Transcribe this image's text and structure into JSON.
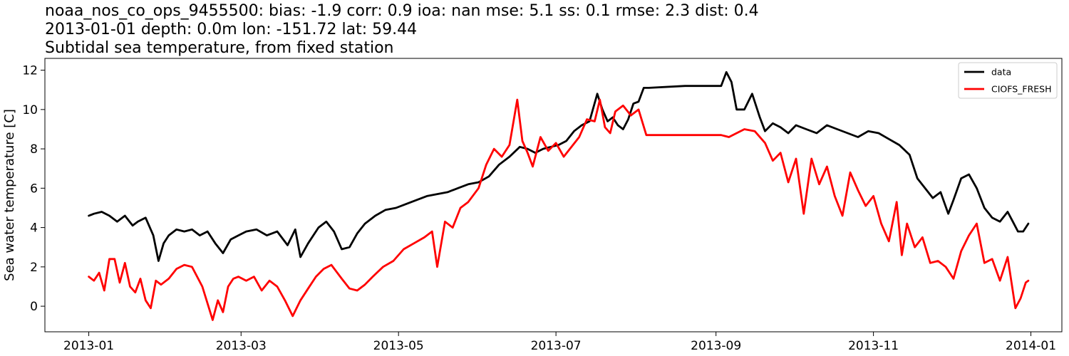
{
  "chart_data": {
    "type": "line",
    "title_lines": [
      "noaa_nos_co_ops_9455500: bias: -1.9  corr: 0.9  ioa: nan  mse: 5.1  ss: 0.1  rmse: 2.3  dist: 0.4",
      "2013-01-01 depth: 0.0m lon: -151.72 lat: 59.44",
      "Subtidal sea temperature, from fixed station"
    ],
    "xlabel": "",
    "ylabel": "Sea water temperature [C]",
    "xlim": [
      "2012-12-15",
      "2014-01-13"
    ],
    "ylim": [
      -1.3,
      12.6
    ],
    "x_ticks": [
      "2013-01",
      "2013-03",
      "2013-05",
      "2013-07",
      "2013-09",
      "2013-11",
      "2014-01"
    ],
    "y_ticks": [
      0,
      2,
      4,
      6,
      8,
      10,
      12
    ],
    "grid": false,
    "legend_position": "top-right",
    "colors": {
      "data": "#000000",
      "CIOFS_FRESH": "#ff0000"
    },
    "series": [
      {
        "name": "data",
        "x": [
          "2013-01-01",
          "2013-01-03",
          "2013-01-06",
          "2013-01-09",
          "2013-01-12",
          "2013-01-15",
          "2013-01-18",
          "2013-01-20",
          "2013-01-23",
          "2013-01-26",
          "2013-01-28",
          "2013-01-30",
          "2013-02-01",
          "2013-02-04",
          "2013-02-07",
          "2013-02-10",
          "2013-02-13",
          "2013-02-16",
          "2013-02-19",
          "2013-02-22",
          "2013-02-25",
          "2013-02-28",
          "2013-03-03",
          "2013-03-07",
          "2013-03-11",
          "2013-03-15",
          "2013-03-19",
          "2013-03-22",
          "2013-03-24",
          "2013-03-27",
          "2013-03-31",
          "2013-04-03",
          "2013-04-06",
          "2013-04-09",
          "2013-04-12",
          "2013-04-15",
          "2013-04-18",
          "2013-04-22",
          "2013-04-26",
          "2013-04-30",
          "2013-05-04",
          "2013-05-08",
          "2013-05-12",
          "2013-05-16",
          "2013-05-20",
          "2013-05-24",
          "2013-05-28",
          "2013-06-01",
          "2013-06-05",
          "2013-06-09",
          "2013-06-13",
          "2013-06-17",
          "2013-06-20",
          "2013-06-23",
          "2013-06-26",
          "2013-06-29",
          "2013-07-02",
          "2013-07-05",
          "2013-07-08",
          "2013-07-11",
          "2013-07-14",
          "2013-07-17",
          "2013-07-19",
          "2013-07-21",
          "2013-07-23",
          "2013-07-25",
          "2013-07-27",
          "2013-07-29",
          "2013-07-31",
          "2013-08-02",
          "2013-08-04",
          "2013-08-06",
          "2013-08-20",
          "2013-09-03",
          "2013-09-05",
          "2013-09-07",
          "2013-09-09",
          "2013-09-12",
          "2013-09-15",
          "2013-09-18",
          "2013-09-20",
          "2013-09-23",
          "2013-09-26",
          "2013-09-29",
          "2013-10-02",
          "2013-10-06",
          "2013-10-10",
          "2013-10-14",
          "2013-10-18",
          "2013-10-22",
          "2013-10-26",
          "2013-10-30",
          "2013-11-03",
          "2013-11-07",
          "2013-11-11",
          "2013-11-15",
          "2013-11-18",
          "2013-11-21",
          "2013-11-24",
          "2013-11-27",
          "2013-11-30",
          "2013-12-02",
          "2013-12-05",
          "2013-12-08",
          "2013-12-11",
          "2013-12-14",
          "2013-12-17",
          "2013-12-20",
          "2013-12-23",
          "2013-12-25",
          "2013-12-27",
          "2013-12-29",
          "2013-12-31"
        ],
        "values": [
          4.6,
          4.7,
          4.8,
          4.6,
          4.3,
          4.6,
          4.1,
          4.3,
          4.5,
          3.6,
          2.3,
          3.2,
          3.6,
          3.9,
          3.8,
          3.9,
          3.6,
          3.8,
          3.2,
          2.7,
          3.4,
          3.6,
          3.8,
          3.9,
          3.6,
          3.8,
          3.1,
          3.9,
          2.5,
          3.2,
          4.0,
          4.3,
          3.8,
          2.9,
          3.0,
          3.7,
          4.2,
          4.6,
          4.9,
          5.0,
          5.2,
          5.4,
          5.6,
          5.7,
          5.8,
          6.0,
          6.2,
          6.3,
          6.6,
          7.2,
          7.6,
          8.1,
          8.0,
          7.8,
          8.0,
          8.1,
          8.2,
          8.4,
          8.9,
          9.2,
          9.4,
          10.8,
          10.0,
          9.4,
          9.6,
          9.2,
          9.0,
          9.5,
          10.3,
          10.4,
          11.1,
          11.1,
          11.2,
          11.2,
          11.9,
          11.4,
          10.0,
          10.0,
          10.8,
          9.6,
          8.9,
          9.3,
          9.1,
          8.8,
          9.2,
          9.0,
          8.8,
          9.2,
          9.0,
          8.8,
          8.6,
          8.9,
          8.8,
          8.5,
          8.2,
          7.7,
          6.5,
          6.0,
          5.5,
          5.8,
          4.7,
          5.4,
          6.5,
          6.7,
          6.0,
          5.0,
          4.5,
          4.3,
          4.8,
          4.3,
          3.8,
          3.8,
          4.2
        ]
      },
      {
        "name": "CIOFS_FRESH",
        "x": [
          "2013-01-01",
          "2013-01-03",
          "2013-01-05",
          "2013-01-07",
          "2013-01-09",
          "2013-01-11",
          "2013-01-13",
          "2013-01-15",
          "2013-01-17",
          "2013-01-19",
          "2013-01-21",
          "2013-01-23",
          "2013-01-25",
          "2013-01-27",
          "2013-01-29",
          "2013-02-01",
          "2013-02-04",
          "2013-02-07",
          "2013-02-10",
          "2013-02-14",
          "2013-02-18",
          "2013-02-20",
          "2013-02-22",
          "2013-02-24",
          "2013-02-26",
          "2013-02-28",
          "2013-03-03",
          "2013-03-06",
          "2013-03-09",
          "2013-03-12",
          "2013-03-15",
          "2013-03-18",
          "2013-03-21",
          "2013-03-24",
          "2013-03-27",
          "2013-03-30",
          "2013-04-02",
          "2013-04-05",
          "2013-04-09",
          "2013-04-12",
          "2013-04-15",
          "2013-04-18",
          "2013-04-21",
          "2013-04-25",
          "2013-04-29",
          "2013-05-03",
          "2013-05-07",
          "2013-05-11",
          "2013-05-14",
          "2013-05-16",
          "2013-05-19",
          "2013-05-22",
          "2013-05-25",
          "2013-05-28",
          "2013-06-01",
          "2013-06-04",
          "2013-06-07",
          "2013-06-10",
          "2013-06-13",
          "2013-06-16",
          "2013-06-18",
          "2013-06-20",
          "2013-06-22",
          "2013-06-25",
          "2013-06-28",
          "2013-07-01",
          "2013-07-04",
          "2013-07-07",
          "2013-07-10",
          "2013-07-13",
          "2013-07-16",
          "2013-07-18",
          "2013-07-20",
          "2013-07-22",
          "2013-07-24",
          "2013-07-27",
          "2013-07-30",
          "2013-08-02",
          "2013-08-05",
          "2013-09-03",
          "2013-09-06",
          "2013-09-09",
          "2013-09-12",
          "2013-09-16",
          "2013-09-20",
          "2013-09-23",
          "2013-09-26",
          "2013-09-29",
          "2013-10-02",
          "2013-10-05",
          "2013-10-08",
          "2013-10-11",
          "2013-10-14",
          "2013-10-17",
          "2013-10-20",
          "2013-10-23",
          "2013-10-26",
          "2013-10-29",
          "2013-11-01",
          "2013-11-04",
          "2013-11-07",
          "2013-11-10",
          "2013-11-12",
          "2013-11-14",
          "2013-11-17",
          "2013-11-20",
          "2013-11-23",
          "2013-11-26",
          "2013-11-29",
          "2013-12-02",
          "2013-12-05",
          "2013-12-08",
          "2013-12-11",
          "2013-12-14",
          "2013-12-17",
          "2013-12-20",
          "2013-12-23",
          "2013-12-26",
          "2013-12-28",
          "2013-12-30",
          "2013-12-31"
        ],
        "values": [
          1.5,
          1.3,
          1.7,
          0.8,
          2.4,
          2.4,
          1.2,
          2.2,
          1.0,
          0.7,
          1.4,
          0.3,
          -0.1,
          1.3,
          1.1,
          1.4,
          1.9,
          2.1,
          2.0,
          1.0,
          -0.7,
          0.3,
          -0.3,
          1.0,
          1.4,
          1.5,
          1.3,
          1.5,
          0.8,
          1.3,
          1.0,
          0.3,
          -0.5,
          0.3,
          0.9,
          1.5,
          1.9,
          2.1,
          1.4,
          0.9,
          0.8,
          1.1,
          1.5,
          2.0,
          2.3,
          2.9,
          3.2,
          3.5,
          3.8,
          2.0,
          4.3,
          4.0,
          5.0,
          5.3,
          6.0,
          7.2,
          8.0,
          7.6,
          8.2,
          10.5,
          8.4,
          7.8,
          7.1,
          8.6,
          7.9,
          8.3,
          7.6,
          8.1,
          8.6,
          9.5,
          9.4,
          10.5,
          9.1,
          8.8,
          9.9,
          10.2,
          9.7,
          10.0,
          8.7,
          8.7,
          8.6,
          8.8,
          9.0,
          8.9,
          8.3,
          7.4,
          7.8,
          6.3,
          7.5,
          4.7,
          7.5,
          6.2,
          7.1,
          5.6,
          4.6,
          6.8,
          5.9,
          5.1,
          5.6,
          4.2,
          3.3,
          5.3,
          2.6,
          4.2,
          3.0,
          3.5,
          2.2,
          2.3,
          2.0,
          1.4,
          2.8,
          3.6,
          4.2,
          2.2,
          2.4,
          1.3,
          2.5,
          -0.1,
          0.4,
          1.2,
          1.3
        ]
      }
    ]
  }
}
